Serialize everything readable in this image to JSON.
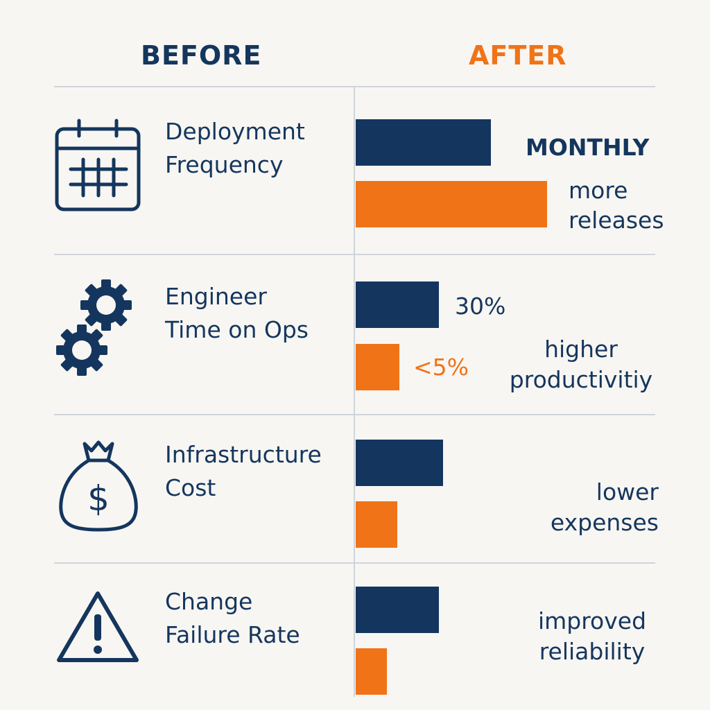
{
  "header": {
    "before": "BEFORE",
    "after": "AFTER"
  },
  "colors": {
    "before": "#14365e",
    "after": "#f07318",
    "text": "#14365e",
    "background": "#f8f6f2"
  },
  "rows": [
    {
      "icon": "calendar-icon",
      "label_line1": "Deployment",
      "label_line2": "Frequency",
      "before_label": "MONTHLY",
      "after_label": "",
      "note_line1": "more",
      "note_line2": "releases"
    },
    {
      "icon": "gears-icon",
      "label_line1": "Engineer",
      "label_line2": "Time on Ops",
      "before_label": "30%",
      "after_label": "<5%",
      "note_line1": "higher",
      "note_line2": "productivitiy"
    },
    {
      "icon": "money-bag-icon",
      "label_line1": "Infrastructure",
      "label_line2": "Cost",
      "before_label": "",
      "after_label": "",
      "note_line1": "lower",
      "note_line2": "expenses"
    },
    {
      "icon": "warning-icon",
      "label_line1": "Change",
      "label_line2": "Failure Rate",
      "before_label": "",
      "after_label": "",
      "note_line1": "improved",
      "note_line2": "reliability"
    }
  ],
  "chart_data": {
    "type": "bar",
    "orientation": "horizontal",
    "categories": [
      "Deployment Frequency",
      "Engineer Time on Ops",
      "Infrastructure Cost",
      "Change Failure Rate"
    ],
    "series": [
      {
        "name": "BEFORE",
        "values": [
          65,
          40,
          42,
          40
        ]
      },
      {
        "name": "AFTER",
        "values": [
          92,
          21,
          20,
          15
        ]
      }
    ],
    "axes": "none",
    "grid": false
  }
}
